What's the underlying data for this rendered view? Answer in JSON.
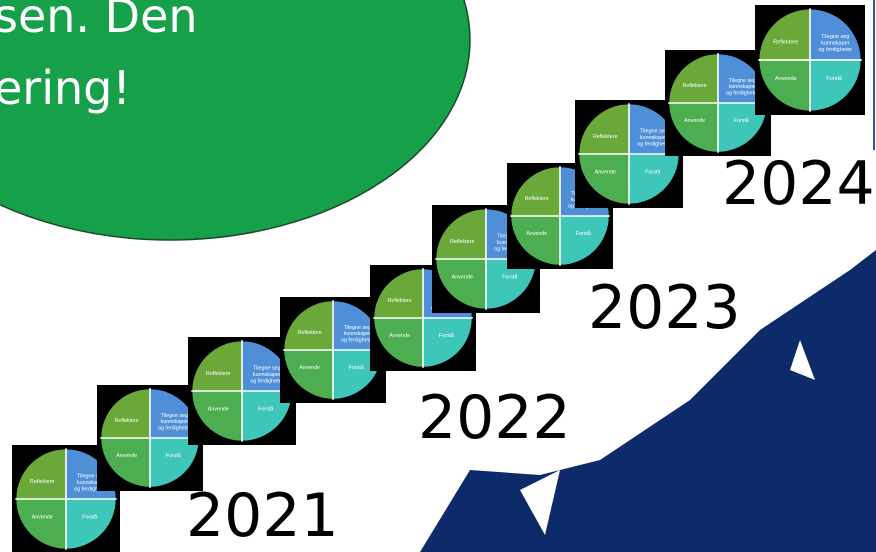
{
  "bubble": {
    "lines": [
      "sen. Den",
      "ering!"
    ]
  },
  "years": [
    "2021",
    "2022",
    "2023",
    "2024"
  ],
  "cycle": {
    "labels": [
      "Reflektere",
      "Tilegne seg kunnskaper og ferdigheter",
      "Anvende",
      "Forstå"
    ]
  }
}
